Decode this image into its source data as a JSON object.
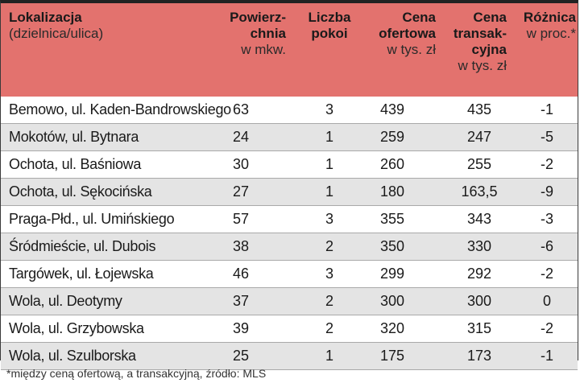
{
  "chart_data": {
    "type": "table",
    "headers": {
      "location": {
        "bold": "Lokalizacja",
        "sub": "(dzielnica/ulica)"
      },
      "area": {
        "bold1": "Powierz-",
        "bold2": "chnia",
        "sub": "w mkw."
      },
      "rooms": {
        "bold1": "Liczba",
        "bold2": "pokoi"
      },
      "offer": {
        "bold1": "Cena",
        "bold2": "ofertowa",
        "sub": "w tys. zł"
      },
      "transaction": {
        "bold1": "Cena",
        "bold2": "transak-",
        "bold3": "cyjna",
        "sub": "w tys. zł"
      },
      "diff": {
        "bold": "Różnica",
        "sub": "w proc.*"
      }
    },
    "rows": [
      [
        "Bemowo, ul. Kaden-Bandrowskiego",
        "63",
        "3",
        "439",
        "435",
        "-1"
      ],
      [
        "Mokotów, ul. Bytnara",
        "24",
        "1",
        "259",
        "247",
        "-5"
      ],
      [
        "Ochota, ul. Baśniowa",
        "30",
        "1",
        "260",
        "255",
        "-2"
      ],
      [
        "Ochota, ul. Sękocińska",
        "27",
        "1",
        "180",
        "163,5",
        "-9"
      ],
      [
        "Praga-Płd., ul. Umińskiego",
        "57",
        "3",
        "355",
        "343",
        "-3"
      ],
      [
        "Śródmieście, ul. Dubois",
        "38",
        "2",
        "350",
        "330",
        "-6"
      ],
      [
        "Targówek, ul. Łojewska",
        "46",
        "3",
        "299",
        "292",
        "-2"
      ],
      [
        "Wola, ul. Deotymy",
        "37",
        "2",
        "300",
        "300",
        "0"
      ],
      [
        "Wola, ul. Grzybowska",
        "39",
        "2",
        "320",
        "315",
        "-2"
      ],
      [
        "Wola, ul. Szulborska",
        "25",
        "1",
        "175",
        "173",
        "-1"
      ]
    ],
    "footnote": "*między ceną ofertową, a transakcyjną, źródło: MLS"
  },
  "colors": {
    "header_bg": "#e3726e",
    "alt_row_bg": "#e4e4e4"
  }
}
